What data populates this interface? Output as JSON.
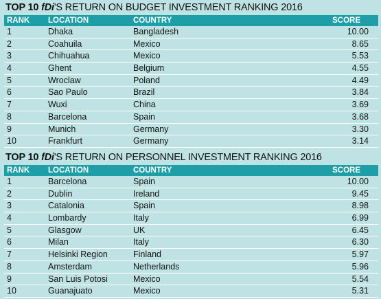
{
  "budget": {
    "title_bold": "TOP 10 ",
    "title_brand": "fDi",
    "title_rest": "'S RETURN ON BUDGET INVESTMENT RANKING 2016",
    "headers": {
      "rank": "RANK",
      "location": "LOCATION",
      "country": "COUNTRY",
      "score": "SCORE"
    },
    "rows": [
      {
        "rank": "1",
        "location": "Dhaka",
        "country": "Bangladesh",
        "score": "10.00"
      },
      {
        "rank": "2",
        "location": "Coahuila",
        "country": "Mexico",
        "score": "8.65"
      },
      {
        "rank": "3",
        "location": "Chihuahua",
        "country": "Mexico",
        "score": "5.53"
      },
      {
        "rank": "4",
        "location": "Ghent",
        "country": "Belgium",
        "score": "4.55"
      },
      {
        "rank": "5",
        "location": "Wroclaw",
        "country": "Poland",
        "score": "4.49"
      },
      {
        "rank": "6",
        "location": "Sao Paulo",
        "country": "Brazil",
        "score": "3.84"
      },
      {
        "rank": "7",
        "location": "Wuxi",
        "country": "China",
        "score": "3.69"
      },
      {
        "rank": "8",
        "location": "Barcelona",
        "country": "Spain",
        "score": "3.68"
      },
      {
        "rank": "9",
        "location": "Munich",
        "country": "Germany",
        "score": "3.30"
      },
      {
        "rank": "10",
        "location": "Frankfurt",
        "country": "Germany",
        "score": "3.14"
      }
    ]
  },
  "personnel": {
    "title_bold": "TOP 10 ",
    "title_brand": "fDi",
    "title_rest": "'S RETURN ON PERSONNEL INVESTMENT RANKING 2016",
    "headers": {
      "rank": "RANK",
      "location": "LOCATION",
      "country": "COUNTRY",
      "score": "SCORE"
    },
    "rows": [
      {
        "rank": "1",
        "location": "Barcelona",
        "country": "Spain",
        "score": "10.00"
      },
      {
        "rank": "2",
        "location": "Dublin",
        "country": "Ireland",
        "score": "9.45"
      },
      {
        "rank": "3",
        "location": "Catalonia",
        "country": "Spain",
        "score": "8.98"
      },
      {
        "rank": "4",
        "location": "Lombardy",
        "country": "Italy",
        "score": "6.99"
      },
      {
        "rank": "5",
        "location": "Glasgow",
        "country": "UK",
        "score": "6.45"
      },
      {
        "rank": "6",
        "location": "Milan",
        "country": "Italy",
        "score": "6.30"
      },
      {
        "rank": "7",
        "location": "Helsinki Region",
        "country": "Finland",
        "score": "5.97"
      },
      {
        "rank": "8",
        "location": "Amsterdam",
        "country": "Netherlands",
        "score": "5.96"
      },
      {
        "rank": "9",
        "location": "San Luis Potosi",
        "country": "Mexico",
        "score": "5.54"
      },
      {
        "rank": "10",
        "location": "Guanajuato",
        "country": "Mexico",
        "score": "5.31"
      }
    ]
  },
  "colors": {
    "header_bg": "#1e9ea6",
    "page_bg": "#bfe3e5",
    "row_divider": "#ffffff"
  }
}
